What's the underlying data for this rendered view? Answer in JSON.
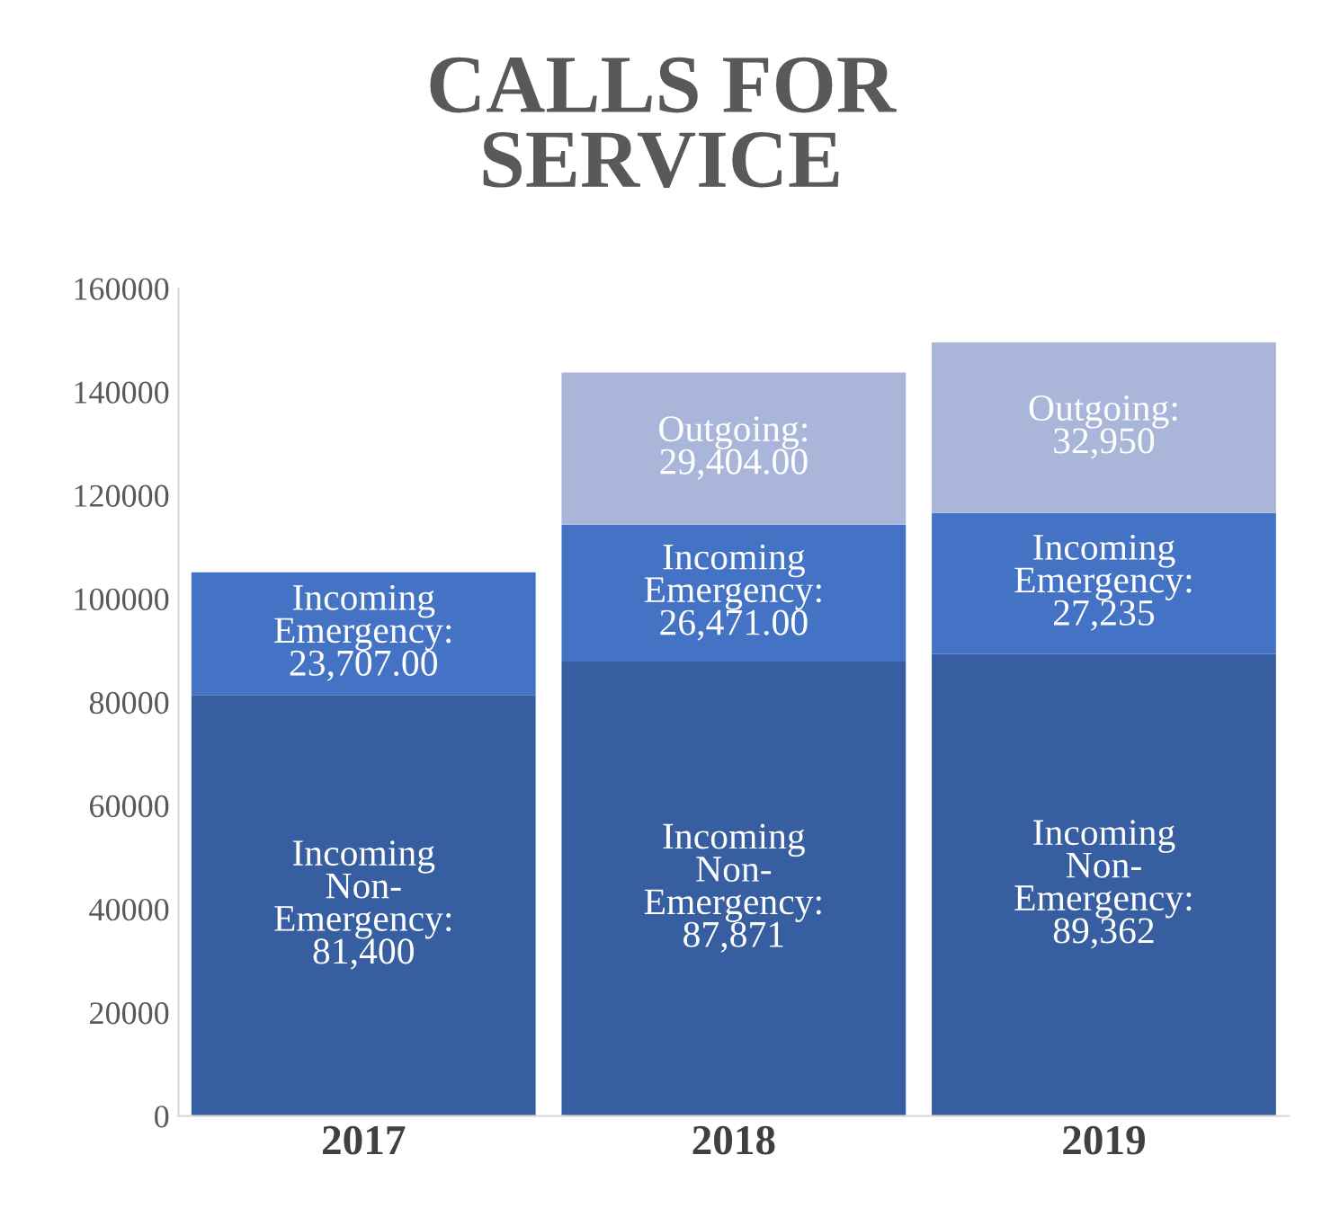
{
  "chart_data": {
    "type": "bar",
    "title": "CALLS FOR\nSERVICE",
    "categories": [
      "2017",
      "2018",
      "2019"
    ],
    "stacked": true,
    "ylim": [
      0,
      160000
    ],
    "yticks": [
      0,
      20000,
      40000,
      60000,
      80000,
      100000,
      120000,
      140000,
      160000
    ],
    "grid": false,
    "legend": false,
    "series": [
      {
        "color": "#365ea0",
        "values": [
          81400,
          87871,
          89362
        ],
        "value_labels": [
          "Incoming\nNon-\nEmergency:\n81,400",
          "Incoming\nNon-\nEmergency:\n87,871",
          "Incoming\nNon-\nEmergency:\n89,362"
        ]
      },
      {
        "color": "#4472c4",
        "values": [
          23707,
          26471,
          27235
        ],
        "value_labels": [
          "Incoming\nEmergency:\n23,707.00",
          "Incoming\nEmergency:\n26,471.00",
          "Incoming\nEmergency:\n27,235"
        ]
      },
      {
        "color": "#a9b6da",
        "values": [
          null,
          29404,
          32950
        ],
        "value_labels": [
          null,
          "Outgoing:\n29,404.00",
          "Outgoing:\n32,950"
        ]
      }
    ]
  }
}
